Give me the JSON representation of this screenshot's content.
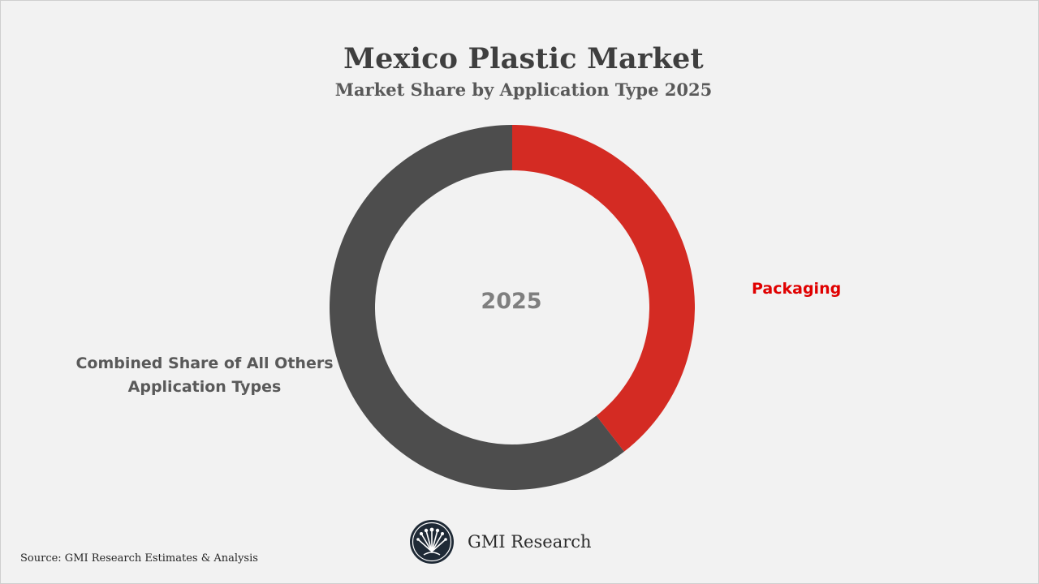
{
  "chart_data": {
    "type": "pie",
    "variant": "donut",
    "title": "Mexico Plastic Market",
    "subtitle": "Market Share by Application Type 2025",
    "center_label": "2025",
    "slices": [
      {
        "label": "Packaging",
        "value": 39.5,
        "color": "#d42b23",
        "label_color": "#e00000"
      },
      {
        "label": "Combined Share of All Others Application Types",
        "value": 60.5,
        "color": "#4d4d4d",
        "label_color": "#595959"
      }
    ]
  },
  "labels": {
    "others_line1": "Combined Share of All Others",
    "others_line2": "Application Types"
  },
  "footer": {
    "source": "Source: GMI Research Estimates & Analysis",
    "brand": "GMI Research"
  },
  "colors": {
    "background": "#f2f2f2",
    "brand_dark": "#1f2a36"
  }
}
